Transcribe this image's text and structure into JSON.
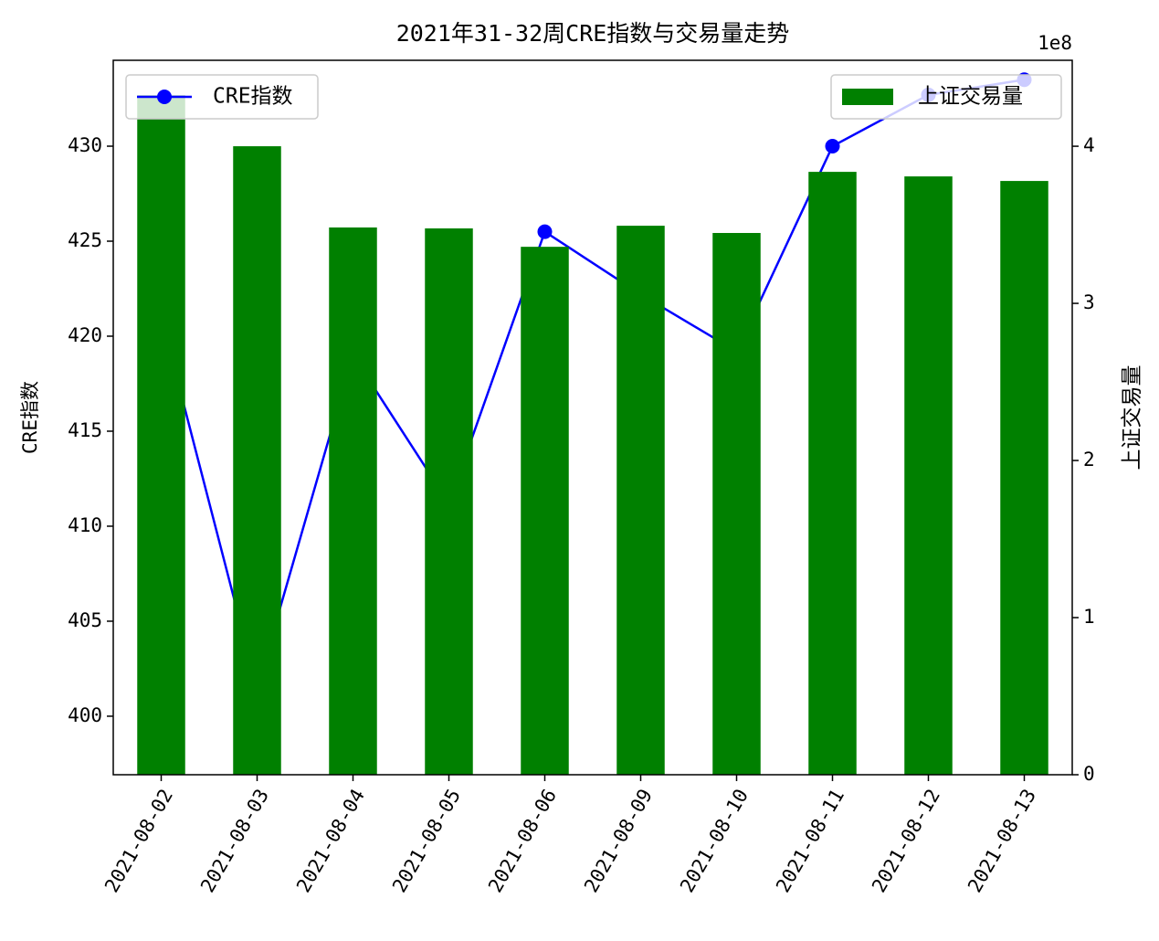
{
  "chart_data": {
    "type": "combo",
    "title": "2021年31-32周CRE指数与交易量走势",
    "categories": [
      "2021-08-02",
      "2021-08-03",
      "2021-08-04",
      "2021-08-05",
      "2021-08-06",
      "2021-08-09",
      "2021-08-10",
      "2021-08-11",
      "2021-08-12",
      "2021-08-13"
    ],
    "ylabel": "CRE指数",
    "y2label": "上证交易量",
    "y2_offset_label": "1e8",
    "ylim": [
      396.92,
      434.52
    ],
    "yticks": [
      400,
      405,
      410,
      415,
      420,
      425,
      430
    ],
    "y2lim": [
      0,
      4.547
    ],
    "y2ticks": [
      0,
      1,
      2,
      3,
      4
    ],
    "series": [
      {
        "name": "CRE指数",
        "type": "line",
        "color": "#0000ff",
        "legend": "upper left",
        "values": [
          421,
          401.5,
          419,
          411.2,
          425.5,
          422.2,
          419.2,
          430,
          432.7,
          433.5
        ]
      },
      {
        "name": "上证交易量",
        "type": "bar",
        "axis": "y2",
        "color": "#008000",
        "legend": "upper right",
        "values": [
          4.326,
          4.0,
          3.483,
          3.477,
          3.36,
          3.494,
          3.448,
          3.837,
          3.808,
          3.779
        ]
      }
    ]
  }
}
